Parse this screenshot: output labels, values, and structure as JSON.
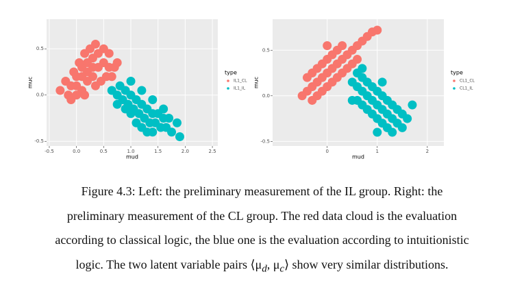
{
  "chart_data": [
    {
      "type": "scatter",
      "x_label": "mud",
      "y_label": "muc",
      "legend_title": "type",
      "grid": true,
      "xlim": [
        -0.55,
        2.6
      ],
      "ylim": [
        -0.55,
        0.82
      ],
      "xticks": [
        -0.5,
        {
          "value": 0,
          "label": "0.0"
        },
        0.5,
        {
          "value": 1,
          "label": "1.0"
        },
        1.5,
        {
          "value": 2,
          "label": "2.0"
        },
        2.5
      ],
      "yticks": [
        -0.5,
        {
          "value": 0,
          "label": "0.0"
        },
        0.5
      ],
      "series": [
        {
          "name": "IL1_CL",
          "color": "#F8766D",
          "x": [
            -0.1,
            0.0,
            0.1,
            0.2,
            0.3,
            0.4,
            0.5,
            0.6,
            0.3,
            0.2,
            0.1,
            0.0,
            -0.1,
            0.4,
            0.5,
            0.25,
            0.15,
            0.05,
            -0.05,
            0.35,
            0.45,
            0.55,
            0.65,
            0.7,
            -0.2,
            0.3,
            0.2,
            0.1,
            0.0,
            -0.15,
            0.75,
            0.6,
            0.35,
            -0.3,
            0.15
          ],
          "values": [
            0.1,
            0.2,
            0.3,
            0.35,
            0.4,
            0.3,
            0.35,
            0.3,
            0.2,
            0.15,
            0.05,
            0.0,
            -0.05,
            0.45,
            0.5,
            0.5,
            0.45,
            0.35,
            0.25,
            0.1,
            0.15,
            0.2,
            0.2,
            0.3,
            0.15,
            0.3,
            0.25,
            0.2,
            0.1,
            0.0,
            0.35,
            0.45,
            0.55,
            0.05,
            0.0
          ]
        },
        {
          "name": "IL1_IL",
          "color": "#00BFC4",
          "x": [
            0.65,
            0.75,
            0.85,
            0.95,
            1.05,
            1.15,
            1.25,
            1.35,
            1.45,
            1.55,
            1.65,
            1.75,
            0.8,
            0.9,
            1.0,
            1.1,
            1.2,
            1.3,
            1.4,
            1.5,
            1.6,
            0.9,
            1.0,
            1.1,
            1.2,
            1.3,
            1.4,
            1.6,
            1.7,
            1.85,
            1.0,
            1.2,
            1.4,
            0.75,
            1.9
          ],
          "values": [
            0.05,
            0.0,
            -0.05,
            -0.1,
            -0.15,
            -0.2,
            -0.25,
            -0.3,
            -0.3,
            -0.35,
            -0.35,
            -0.4,
            0.1,
            0.05,
            0.0,
            -0.05,
            -0.1,
            -0.15,
            -0.2,
            -0.2,
            -0.25,
            -0.15,
            -0.2,
            -0.3,
            -0.35,
            -0.4,
            -0.4,
            -0.15,
            -0.25,
            -0.3,
            0.15,
            0.05,
            -0.05,
            -0.1,
            -0.45
          ]
        }
      ]
    },
    {
      "type": "scatter",
      "x_label": "mud",
      "y_label": "muc",
      "legend_title": "type",
      "grid": true,
      "xlim": [
        -1.09,
        2.33
      ],
      "ylim": [
        -0.55,
        0.84
      ],
      "xticks": [
        0,
        1,
        2
      ],
      "yticks": [
        -0.5,
        {
          "value": 0,
          "label": "0.0"
        },
        0.5
      ],
      "series": [
        {
          "name": "CL1_CL",
          "color": "#F8766D",
          "x": [
            -0.4,
            -0.3,
            -0.2,
            -0.1,
            0.0,
            0.1,
            0.2,
            0.3,
            0.4,
            0.5,
            0.6,
            0.7,
            -0.3,
            -0.2,
            -0.1,
            0.0,
            0.1,
            0.2,
            -0.4,
            0.0,
            0.1,
            0.2,
            0.3,
            -0.2,
            -0.1,
            0.4,
            0.5,
            0.8,
            0.9,
            -0.5,
            0.3,
            0.0,
            -0.3,
            0.6,
            1.0
          ],
          "values": [
            0.05,
            0.1,
            0.15,
            0.2,
            0.25,
            0.3,
            0.35,
            0.4,
            0.45,
            0.5,
            0.55,
            0.6,
            0.25,
            0.3,
            0.35,
            0.4,
            0.45,
            0.5,
            0.2,
            0.1,
            0.15,
            0.2,
            0.25,
            0.0,
            0.05,
            0.3,
            0.35,
            0.65,
            0.7,
            0.0,
            0.55,
            0.55,
            -0.05,
            0.4,
            0.72
          ]
        },
        {
          "name": "CL1_IL",
          "color": "#00BFC4",
          "x": [
            0.5,
            0.6,
            0.7,
            0.8,
            0.9,
            1.0,
            1.1,
            1.2,
            1.3,
            1.4,
            0.6,
            0.7,
            0.8,
            0.9,
            1.0,
            1.1,
            1.2,
            0.8,
            0.9,
            1.0,
            1.1,
            1.2,
            1.3,
            1.4,
            0.6,
            0.7,
            1.5,
            1.5,
            1.6,
            1.0,
            1.3,
            0.5,
            1.7,
            0.7,
            1.1
          ],
          "values": [
            0.15,
            0.1,
            0.05,
            0.0,
            -0.05,
            -0.1,
            -0.15,
            -0.2,
            -0.25,
            -0.3,
            -0.05,
            -0.1,
            -0.15,
            -0.2,
            -0.25,
            -0.3,
            -0.35,
            0.15,
            0.1,
            0.05,
            0.0,
            -0.05,
            -0.1,
            -0.15,
            0.25,
            0.3,
            -0.2,
            -0.35,
            -0.25,
            -0.4,
            -0.4,
            -0.05,
            -0.1,
            0.2,
            0.15
          ]
        }
      ]
    }
  ],
  "caption": {
    "lines": [
      "Figure 4.3: Left: the preliminary measurement of the IL group. Right: the",
      "preliminary measurement of the CL group. The red data cloud is the evaluation",
      "according to classical logic, the blue one is the evaluation according to intuitionistic"
    ],
    "last": {
      "before": "logic. The two latent variable pairs ⟨μ",
      "sub1": "d",
      "mid": ", μ",
      "sub2": "c",
      "after": "⟩ show very similar distributions."
    }
  }
}
